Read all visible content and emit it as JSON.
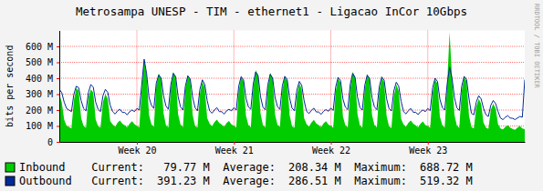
{
  "chart_data": {
    "type": "line",
    "title": "Metrosampa UNESP - TIM - ethernet1 - Ligacao InCor 10Gbps",
    "y_label": "bits per second",
    "annotations": [
      "RRDTOOL / TOBI OETIKER"
    ],
    "grid": true,
    "legend": "bottom",
    "stat_labels": [
      "Current:",
      "Average:",
      "Maximum:"
    ],
    "xlim": [
      19.2,
      24
    ],
    "xticks": [
      {
        "value": 20,
        "label": "Week 20"
      },
      {
        "value": 21,
        "label": "Week 21"
      },
      {
        "value": 22,
        "label": "Week 22"
      },
      {
        "value": 23,
        "label": "Week 23"
      }
    ],
    "ylim": [
      0,
      700
    ],
    "yticks": [
      0,
      {
        "value": 100,
        "label": "100 M"
      },
      {
        "value": 200,
        "label": "200 M"
      },
      {
        "value": 300,
        "label": "300 M"
      },
      {
        "value": 400,
        "label": "400 M"
      },
      {
        "value": 500,
        "label": "500 M"
      },
      {
        "value": 600,
        "label": "600 M"
      }
    ],
    "x": [
      19.2,
      19.225,
      19.25,
      19.275,
      19.3,
      19.325,
      19.35,
      19.375,
      19.4,
      19.425,
      19.45,
      19.475,
      19.5,
      19.525,
      19.55,
      19.575,
      19.6,
      19.625,
      19.65,
      19.675,
      19.7,
      19.725,
      19.75,
      19.775,
      19.8,
      19.825,
      19.85,
      19.875,
      19.9,
      19.925,
      19.95,
      19.975,
      20,
      20.025,
      20.05,
      20.075,
      20.1,
      20.125,
      20.15,
      20.175,
      20.2,
      20.225,
      20.25,
      20.275,
      20.3,
      20.325,
      20.35,
      20.375,
      20.4,
      20.425,
      20.45,
      20.475,
      20.5,
      20.525,
      20.55,
      20.575,
      20.6,
      20.625,
      20.65,
      20.675,
      20.7,
      20.725,
      20.75,
      20.775,
      20.8,
      20.825,
      20.85,
      20.875,
      20.9,
      20.925,
      20.95,
      20.975,
      21,
      21.025,
      21.05,
      21.075,
      21.1,
      21.125,
      21.15,
      21.175,
      21.2,
      21.225,
      21.25,
      21.275,
      21.3,
      21.325,
      21.35,
      21.375,
      21.4,
      21.425,
      21.45,
      21.475,
      21.5,
      21.525,
      21.55,
      21.575,
      21.6,
      21.625,
      21.65,
      21.675,
      21.7,
      21.725,
      21.75,
      21.775,
      21.8,
      21.825,
      21.85,
      21.875,
      21.9,
      21.925,
      21.95,
      21.975,
      22,
      22.025,
      22.05,
      22.075,
      22.1,
      22.125,
      22.15,
      22.175,
      22.2,
      22.225,
      22.25,
      22.275,
      22.3,
      22.325,
      22.35,
      22.375,
      22.4,
      22.425,
      22.45,
      22.475,
      22.5,
      22.525,
      22.55,
      22.575,
      22.6,
      22.625,
      22.65,
      22.675,
      22.7,
      22.725,
      22.75,
      22.775,
      22.8,
      22.825,
      22.85,
      22.875,
      22.9,
      22.925,
      22.95,
      22.975,
      23,
      23.025,
      23.05,
      23.075,
      23.1,
      23.125,
      23.15,
      23.175,
      23.2,
      23.225,
      23.25,
      23.275,
      23.3,
      23.325,
      23.35,
      23.375,
      23.4,
      23.425,
      23.45,
      23.475,
      23.5,
      23.525,
      23.55,
      23.575,
      23.6,
      23.625,
      23.65,
      23.675,
      23.7,
      23.725,
      23.75,
      23.775,
      23.8,
      23.825,
      23.85,
      23.875,
      23.9,
      23.925,
      23.95,
      23.975,
      24
    ],
    "series": [
      {
        "name": "Inbound",
        "type": "area",
        "color": "#00cc00",
        "stats": [
          {
            "value": 79.77,
            "label": "79.77 M"
          },
          {
            "value": 208.34,
            "label": "208.34 M"
          },
          {
            "value": 688.72,
            "label": "688.72 M"
          }
        ],
        "values": [
          300,
          250,
          140,
          100,
          95,
          85,
          260,
          340,
          320,
          150,
          100,
          88,
          280,
          330,
          310,
          140,
          98,
          90,
          250,
          300,
          270,
          130,
          110,
          95,
          120,
          135,
          115,
          105,
          92,
          115,
          130,
          112,
          100,
          92,
          330,
          520,
          420,
          170,
          110,
          95,
          350,
          430,
          400,
          180,
          105,
          90,
          340,
          440,
          410,
          175,
          108,
          93,
          330,
          420,
          390,
          170,
          100,
          90,
          300,
          380,
          340,
          150,
          115,
          98,
          125,
          140,
          118,
          108,
          95,
          118,
          132,
          110,
          102,
          90,
          320,
          410,
          380,
          165,
          106,
          92,
          340,
          450,
          420,
          178,
          104,
          91,
          335,
          435,
          400,
          172,
          107,
          94,
          325,
          415,
          385,
          168,
          99,
          88,
          290,
          370,
          330,
          148,
          112,
          96,
          122,
          138,
          116,
          106,
          93,
          116,
          130,
          108,
          101,
          89,
          315,
          400,
          370,
          160,
          105,
          91,
          330,
          440,
          410,
          175,
          103,
          90,
          328,
          425,
          395,
          170,
          106,
          92,
          320,
          405,
          375,
          165,
          98,
          87,
          285,
          360,
          320,
          145,
          110,
          95,
          120,
          135,
          114,
          104,
          92,
          114,
          128,
          106,
          100,
          88,
          310,
          395,
          365,
          158,
          104,
          90,
          360,
          688.72,
          400,
          170,
          102,
          89,
          320,
          410,
          380,
          165,
          95,
          85,
          220,
          270,
          240,
          120,
          90,
          82,
          200,
          240,
          210,
          110,
          85,
          78,
          95,
          105,
          90,
          82,
          76,
          90,
          100,
          85,
          79.77
        ]
      },
      {
        "name": "Outbound",
        "type": "line",
        "color": "#002a97",
        "stats": [
          {
            "value": 391.23,
            "label": "391.23 M"
          },
          {
            "value": 286.51,
            "label": "286.51 M"
          },
          {
            "value": 519.32,
            "label": "519.32 M"
          }
        ],
        "values": [
          330,
          310,
          250,
          210,
          200,
          190,
          300,
          350,
          340,
          260,
          210,
          195,
          310,
          360,
          345,
          250,
          205,
          190,
          290,
          330,
          310,
          230,
          190,
          175,
          195,
          205,
          185,
          185,
          170,
          190,
          200,
          190,
          210,
          200,
          360,
          519.32,
          430,
          280,
          230,
          210,
          370,
          420,
          400,
          290,
          225,
          205,
          360,
          430,
          410,
          285,
          220,
          200,
          350,
          415,
          395,
          280,
          215,
          195,
          330,
          390,
          360,
          260,
          195,
          180,
          200,
          215,
          190,
          190,
          175,
          195,
          205,
          195,
          215,
          200,
          350,
          410,
          390,
          275,
          220,
          205,
          365,
          440,
          415,
          285,
          218,
          202,
          358,
          425,
          400,
          280,
          222,
          204,
          352,
          412,
          392,
          276,
          212,
          196,
          325,
          380,
          355,
          258,
          192,
          178,
          198,
          212,
          188,
          188,
          173,
          192,
          203,
          192,
          212,
          198,
          345,
          405,
          385,
          270,
          218,
          203,
          360,
          430,
          405,
          282,
          216,
          200,
          355,
          420,
          398,
          278,
          220,
          202,
          348,
          408,
          388,
          272,
          210,
          194,
          320,
          375,
          350,
          255,
          190,
          176,
          196,
          210,
          186,
          186,
          172,
          190,
          200,
          190,
          210,
          196,
          340,
          400,
          380,
          268,
          216,
          200,
          365,
          470,
          400,
          278,
          214,
          198,
          350,
          412,
          392,
          274,
          180,
          170,
          250,
          290,
          270,
          210,
          170,
          160,
          230,
          260,
          240,
          190,
          150,
          140,
          155,
          165,
          150,
          148,
          140,
          150,
          160,
          155,
          391.23
        ]
      }
    ]
  }
}
